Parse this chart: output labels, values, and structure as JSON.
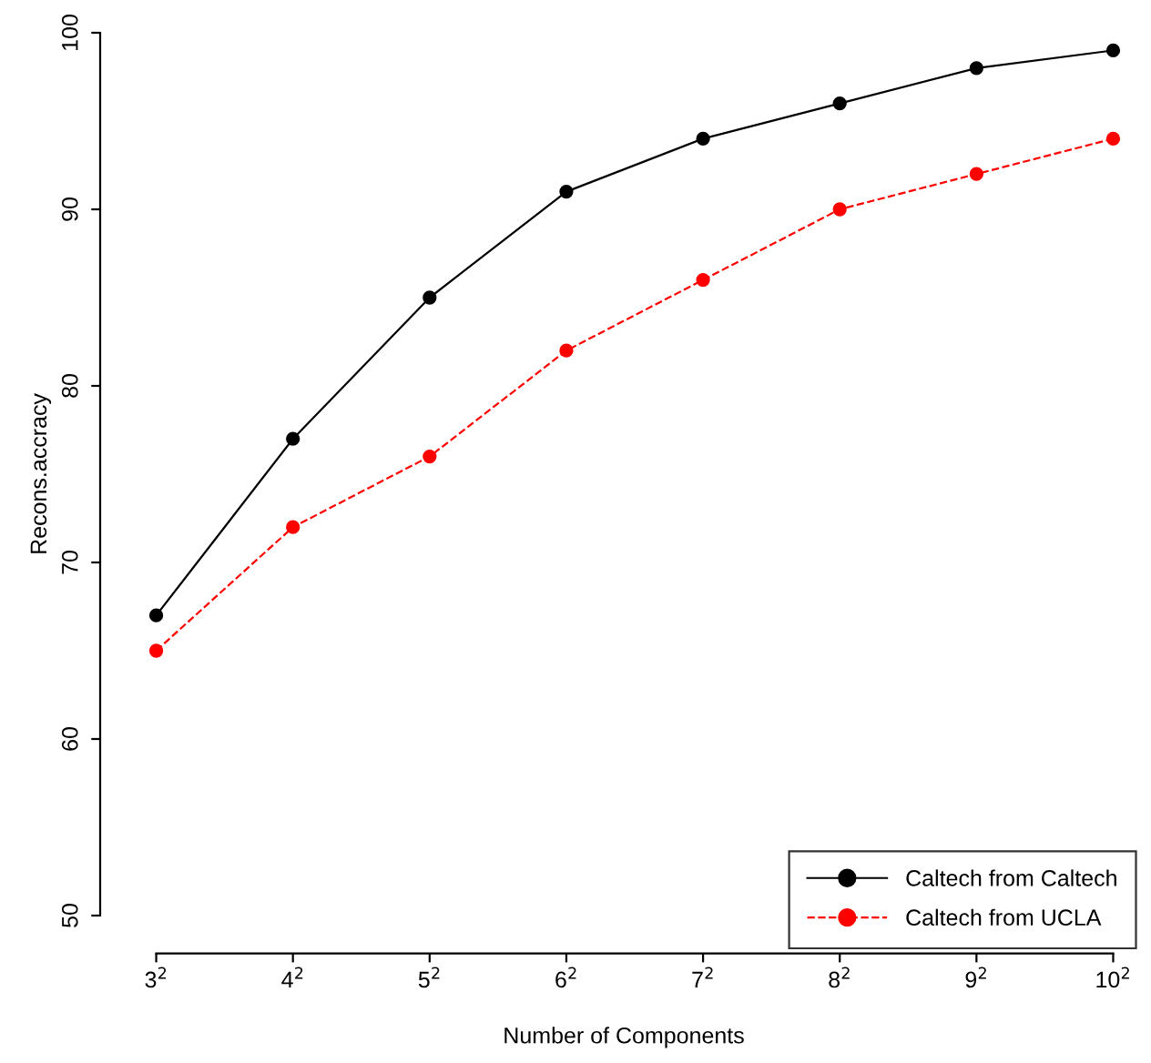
{
  "chart_data": {
    "type": "line",
    "xlabel": "Number of Components",
    "ylabel": "Recons.accracy",
    "categories": [
      "3$^{2}$",
      "4$^{2}$",
      "5$^{2}$",
      "6$^{2}$",
      "7$^{2}$",
      "8$^{2}$",
      "9$^{2}$",
      "10$^{2}$"
    ],
    "series": [
      {
        "name": "Caltech from Caltech",
        "color": "#000000",
        "line_style": "solid",
        "values": [
          67,
          77,
          85,
          91,
          94,
          96,
          98,
          99
        ]
      },
      {
        "name": "Caltech from UCLA",
        "color": "#ff0000",
        "line_style": "dashed",
        "values": [
          65,
          72,
          76,
          82,
          86,
          90,
          92,
          94
        ]
      }
    ],
    "ylim": [
      50,
      100
    ],
    "yticks": [
      50,
      60,
      70,
      80,
      90,
      100
    ],
    "marker": "circle",
    "grid": false,
    "legend": "bottom right"
  }
}
